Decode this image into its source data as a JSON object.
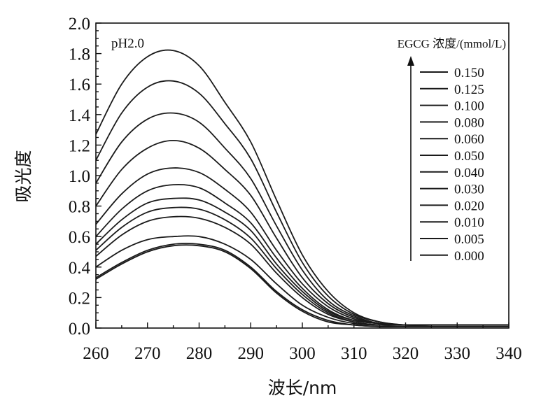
{
  "chart_data": {
    "type": "line",
    "title": "",
    "xlabel": "波长/nm",
    "ylabel": "吸光度",
    "xlim": [
      260,
      340
    ],
    "ylim": [
      0.0,
      2.0
    ],
    "x_ticks": [
      "260",
      "270",
      "280",
      "290",
      "300",
      "310",
      "320",
      "330",
      "340"
    ],
    "y_ticks": [
      "0.0",
      "0.2",
      "0.4",
      "0.6",
      "0.8",
      "1.0",
      "1.2",
      "1.4",
      "1.6",
      "1.8",
      "2.0"
    ],
    "annotation": "pH2.0",
    "legend_title": "EGCG 浓度/(mmol/L)",
    "legend_placement": "top-right",
    "grid": false,
    "x": [
      260,
      265,
      270,
      275,
      280,
      285,
      290,
      295,
      300,
      305,
      310,
      315,
      320,
      325,
      330,
      335,
      340
    ],
    "series": [
      {
        "name": "0.150",
        "values": [
          1.27,
          1.6,
          1.78,
          1.82,
          1.72,
          1.48,
          1.22,
          0.84,
          0.48,
          0.24,
          0.1,
          0.04,
          0.02,
          0.02,
          0.02,
          0.02,
          0.02
        ]
      },
      {
        "name": "0.125",
        "values": [
          1.1,
          1.41,
          1.58,
          1.62,
          1.54,
          1.34,
          1.11,
          0.76,
          0.43,
          0.21,
          0.09,
          0.04,
          0.02,
          0.02,
          0.02,
          0.02,
          0.02
        ]
      },
      {
        "name": "0.100",
        "values": [
          0.95,
          1.22,
          1.37,
          1.41,
          1.35,
          1.18,
          0.98,
          0.67,
          0.38,
          0.18,
          0.08,
          0.03,
          0.02,
          0.02,
          0.02,
          0.02,
          0.02
        ]
      },
      {
        "name": "0.080",
        "values": [
          0.8,
          1.04,
          1.18,
          1.23,
          1.18,
          1.04,
          0.87,
          0.59,
          0.33,
          0.16,
          0.07,
          0.03,
          0.02,
          0.02,
          0.02,
          0.02,
          0.02
        ]
      },
      {
        "name": "0.060",
        "values": [
          0.68,
          0.88,
          1.01,
          1.05,
          1.02,
          0.91,
          0.76,
          0.51,
          0.29,
          0.14,
          0.06,
          0.03,
          0.02,
          0.02,
          0.02,
          0.02,
          0.02
        ]
      },
      {
        "name": "0.050",
        "values": [
          0.6,
          0.78,
          0.9,
          0.94,
          0.92,
          0.82,
          0.69,
          0.46,
          0.26,
          0.12,
          0.05,
          0.03,
          0.02,
          0.02,
          0.02,
          0.02,
          0.02
        ]
      },
      {
        "name": "0.040",
        "values": [
          0.55,
          0.71,
          0.82,
          0.85,
          0.84,
          0.76,
          0.64,
          0.42,
          0.24,
          0.11,
          0.05,
          0.03,
          0.02,
          0.02,
          0.02,
          0.02,
          0.02
        ]
      },
      {
        "name": "0.030",
        "values": [
          0.51,
          0.66,
          0.76,
          0.79,
          0.78,
          0.71,
          0.59,
          0.39,
          0.22,
          0.1,
          0.04,
          0.02,
          0.02,
          0.02,
          0.02,
          0.02,
          0.02
        ]
      },
      {
        "name": "0.020",
        "values": [
          0.47,
          0.61,
          0.7,
          0.73,
          0.72,
          0.66,
          0.55,
          0.36,
          0.2,
          0.09,
          0.04,
          0.02,
          0.02,
          0.02,
          0.02,
          0.02,
          0.02
        ]
      },
      {
        "name": "0.010",
        "values": [
          0.4,
          0.51,
          0.58,
          0.6,
          0.6,
          0.55,
          0.45,
          0.29,
          0.15,
          0.07,
          0.03,
          0.02,
          0.02,
          0.02,
          0.02,
          0.02,
          0.02
        ]
      },
      {
        "name": "0.005",
        "values": [
          0.33,
          0.43,
          0.51,
          0.55,
          0.55,
          0.51,
          0.4,
          0.24,
          0.12,
          0.05,
          0.02,
          0.01,
          0.01,
          0.01,
          0.01,
          0.01,
          0.01
        ]
      },
      {
        "name": "0.000",
        "values": [
          0.32,
          0.42,
          0.5,
          0.54,
          0.54,
          0.5,
          0.39,
          0.23,
          0.11,
          0.04,
          0.02,
          0.01,
          0.01,
          0.01,
          0.01,
          0.01,
          0.01
        ]
      }
    ],
    "colors": {
      "line": "#1a1a1a",
      "axis": "#111111",
      "background": "#ffffff"
    }
  }
}
